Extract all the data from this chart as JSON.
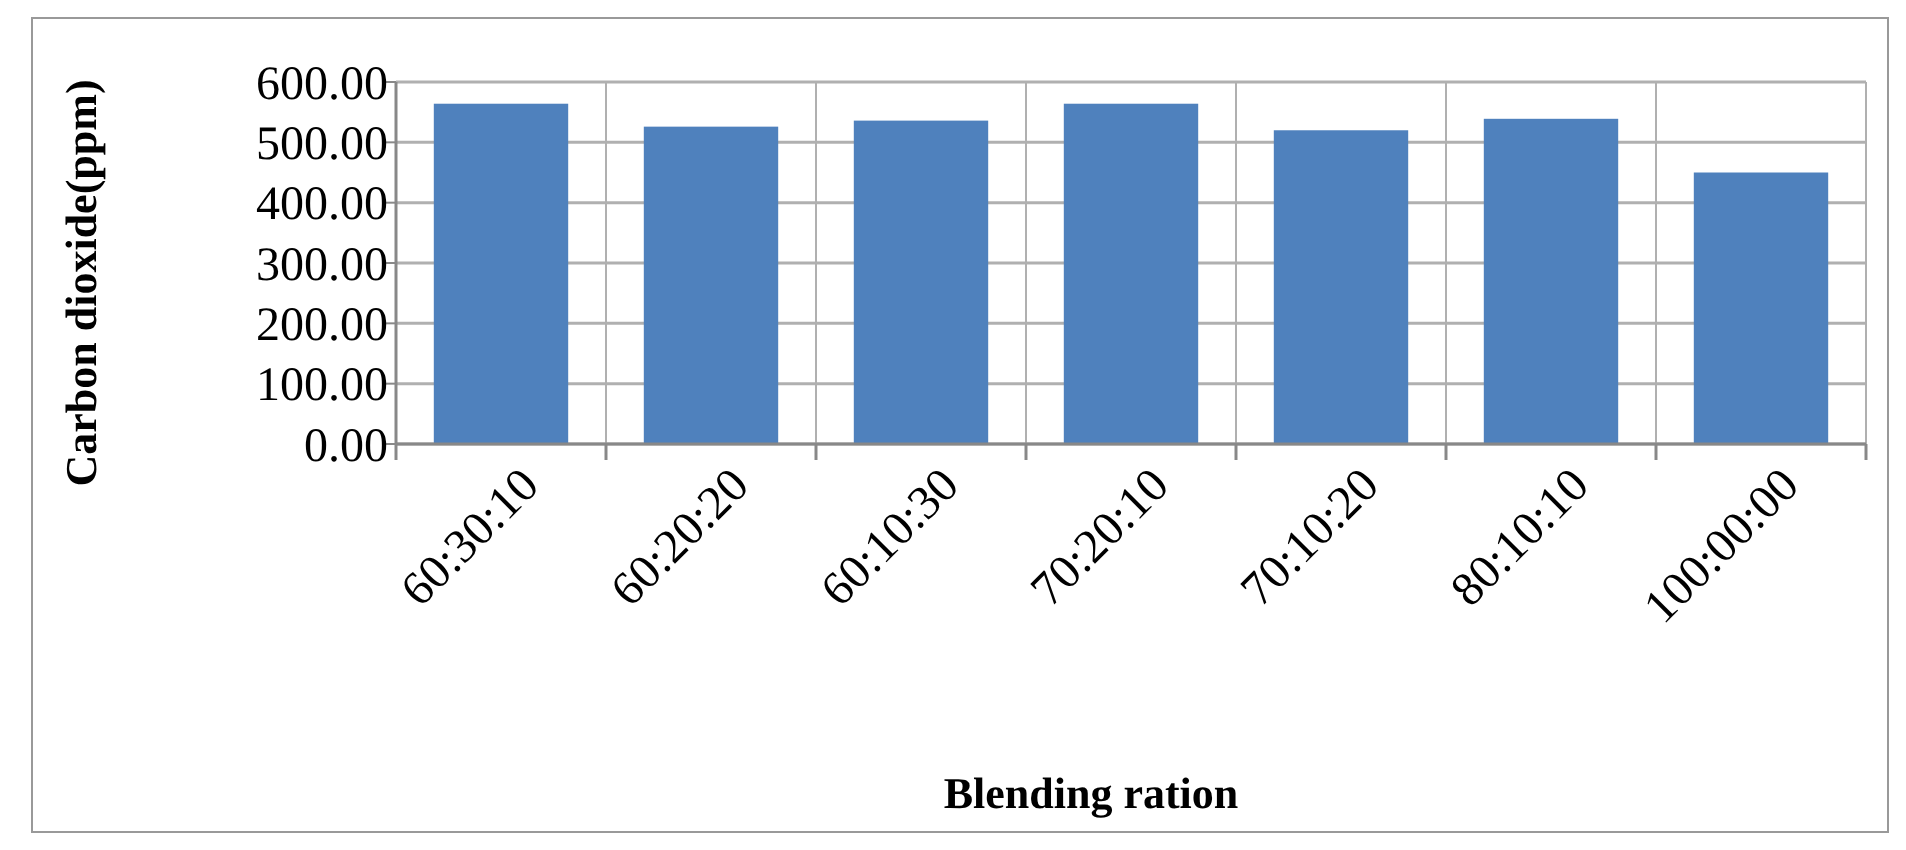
{
  "chart_data": {
    "type": "bar",
    "xlabel": "Blending ration",
    "ylabel": "Carbon dioxide(ppm)",
    "categories": [
      "60:30:10",
      "60:20:20",
      "60:10:30",
      "70:20:10",
      "70:10:20",
      "80:10:10",
      "100:00:00"
    ],
    "values": [
      564,
      526,
      536,
      564,
      520,
      539,
      450
    ],
    "color": "#4f81bd",
    "ylim": [
      0,
      600
    ],
    "yticks": [
      {
        "value": 0,
        "label": "0.00"
      },
      {
        "value": 100,
        "label": "100.00"
      },
      {
        "value": 200,
        "label": "200.00"
      },
      {
        "value": 300,
        "label": "300.00"
      },
      {
        "value": 400,
        "label": "400.00"
      },
      {
        "value": 500,
        "label": "500.00"
      },
      {
        "value": 600,
        "label": "600.00"
      }
    ],
    "grid": true
  }
}
